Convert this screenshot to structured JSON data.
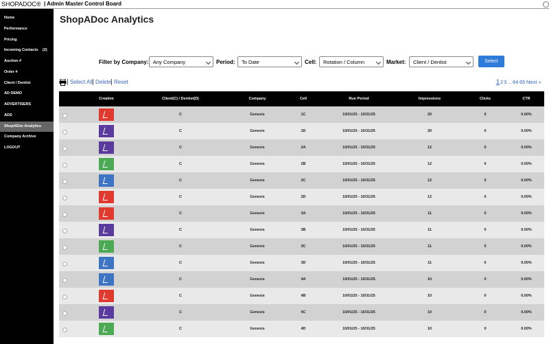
{
  "header": {
    "brand": "SHOPADOC®",
    "title": "| Admin Master Control Board"
  },
  "sidebar": {
    "items": [
      {
        "label": "Home"
      },
      {
        "label": "Performance"
      },
      {
        "label": "Pricing"
      },
      {
        "label": "Incoming Contacts",
        "badge": "(2)"
      },
      {
        "label": "Auction #"
      },
      {
        "label": "Order #"
      },
      {
        "label": "Client / Dentist"
      },
      {
        "label": "AD DEMO"
      },
      {
        "label": "ADVERTISERS"
      },
      {
        "label": "ADS"
      },
      {
        "label": "ShopADoc Analytics",
        "active": true
      },
      {
        "label": "Company Archive"
      },
      {
        "label": "LOGOUT"
      }
    ]
  },
  "page_title": "ShopADoc Analytics",
  "filters": [
    {
      "label": "Filter by Company:",
      "value": "Any Company"
    },
    {
      "label": "Period:",
      "value": "To Date"
    },
    {
      "label": "Cell:",
      "value": "Rotation / Column"
    },
    {
      "label": "Market:",
      "value": "Client / Dentist"
    }
  ],
  "select_button": "Select",
  "actions": [
    "Select All",
    "Delete",
    "Reset"
  ],
  "pagination": {
    "pages": [
      "1",
      "2",
      "3",
      "...",
      "64",
      "65"
    ],
    "next": "Next »"
  },
  "table": {
    "columns": [
      "Creative",
      "Client(C) / Dentist(D)",
      "Company",
      "Cell",
      "Run Period",
      "Impressions",
      "Clicks",
      "CTR"
    ],
    "rows": [
      {
        "creative_color": "#e03a2e",
        "cells": [
          "C",
          "Genesis",
          "1C",
          "10/01/25 - 10/31/25",
          20,
          0,
          "0.00%"
        ]
      },
      {
        "creative_color": "#5b3a9e",
        "cells": [
          "C",
          "Genesis",
          "1D",
          "10/01/25 - 10/31/25",
          20,
          0,
          "0.00%"
        ]
      },
      {
        "creative_color": "#5b3a9e",
        "cells": [
          "C",
          "Genesis",
          "2A",
          "10/01/25 - 10/31/25",
          12,
          0,
          "0.00%"
        ]
      },
      {
        "creative_color": "#4caa55",
        "cells": [
          "C",
          "Genesis",
          "2B",
          "10/01/25 - 10/31/25",
          12,
          0,
          "0.00%"
        ]
      },
      {
        "creative_color": "#3d74c4",
        "cells": [
          "C",
          "Genesis",
          "2C",
          "10/01/25 - 10/31/25",
          12,
          0,
          "0.00%"
        ]
      },
      {
        "creative_color": "#e03a2e",
        "cells": [
          "C",
          "Genesis",
          "2D",
          "10/01/25 - 10/31/25",
          12,
          0,
          "0.00%"
        ]
      },
      {
        "creative_color": "#e03a2e",
        "cells": [
          "C",
          "Genesis",
          "3A",
          "10/01/25 - 10/31/25",
          11,
          0,
          "0.00%"
        ]
      },
      {
        "creative_color": "#5b3a9e",
        "cells": [
          "C",
          "Genesis",
          "3B",
          "10/01/25 - 10/31/25",
          11,
          0,
          "0.00%"
        ]
      },
      {
        "creative_color": "#4caa55",
        "cells": [
          "C",
          "Genesis",
          "3C",
          "10/01/25 - 10/31/25",
          11,
          0,
          "0.00%"
        ]
      },
      {
        "creative_color": "#3d74c4",
        "cells": [
          "C",
          "Genesis",
          "3D",
          "10/01/25 - 10/31/25",
          11,
          0,
          "0.00%"
        ]
      },
      {
        "creative_color": "#3d74c4",
        "cells": [
          "C",
          "Genesis",
          "4A",
          "10/01/25 - 10/31/25",
          10,
          0,
          "0.00%"
        ]
      },
      {
        "creative_color": "#e03a2e",
        "cells": [
          "C",
          "Genesis",
          "4B",
          "10/01/25 - 10/31/25",
          10,
          0,
          "0.00%"
        ]
      },
      {
        "creative_color": "#5b3a9e",
        "cells": [
          "C",
          "Genesis",
          "4C",
          "10/01/25 - 10/31/25",
          10,
          0,
          "0.00%"
        ]
      },
      {
        "creative_color": "#4caa55",
        "cells": [
          "C",
          "Genesis",
          "4D",
          "10/01/25 - 10/31/25",
          10,
          0,
          "0.00%"
        ]
      }
    ]
  }
}
